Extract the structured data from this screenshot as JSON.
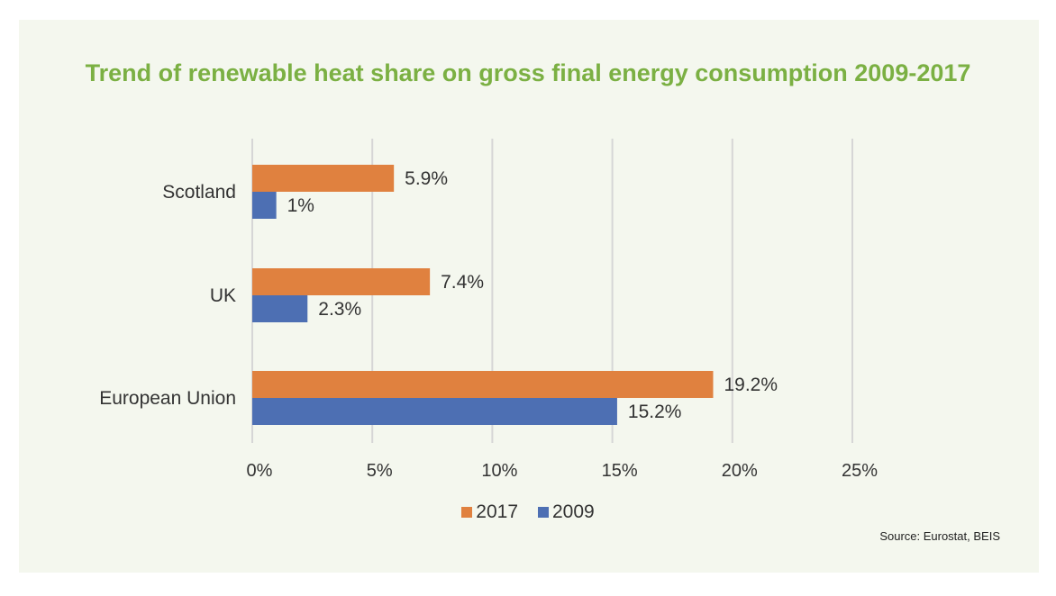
{
  "colors": {
    "background": "#ffffff",
    "panel": "#f4f7ee",
    "title": "#7bb043",
    "grid": "#d6d6d6",
    "text": "#333333"
  },
  "chart_data": {
    "type": "bar",
    "orientation": "horizontal",
    "title": "Trend of renewable heat share on gross final energy consumption 2009-2017",
    "categories": [
      "Scotland",
      "UK",
      "European Union"
    ],
    "series": [
      {
        "name": "2017",
        "color": "#e0813f",
        "values": [
          5.9,
          7.4,
          19.2
        ],
        "labels": [
          "5.9%",
          "7.4%",
          "19.2%"
        ]
      },
      {
        "name": "2009",
        "color": "#4d6fb3",
        "values": [
          1,
          2.3,
          15.2
        ],
        "labels": [
          "1%",
          "2.3%",
          "15.2%"
        ]
      }
    ],
    "xlim": [
      0,
      25
    ],
    "xticks": [
      0,
      5,
      10,
      15,
      20,
      25
    ],
    "xtick_labels": [
      "0%",
      "5%",
      "10%",
      "15%",
      "20%",
      "25%"
    ],
    "grid": true,
    "legend": "bottom",
    "source": "Source: Eurostat, BEIS"
  }
}
